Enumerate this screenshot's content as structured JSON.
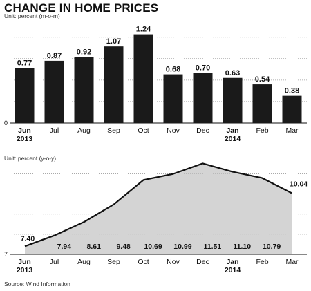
{
  "title": "CHANGE IN HOME PRICES",
  "source": "Source: Wind Information",
  "chart_data": [
    {
      "type": "bar",
      "unit": "Unit: percent (m-o-m)",
      "categories": [
        "Jun",
        "Jul",
        "Aug",
        "Sep",
        "Oct",
        "Nov",
        "Dec",
        "Jan",
        "Feb",
        "Mar"
      ],
      "year_labels": [
        "2013",
        "",
        "",
        "",
        "",
        "",
        "",
        "2014",
        "",
        ""
      ],
      "bold_categories": [
        0,
        7
      ],
      "values": [
        0.77,
        0.87,
        0.92,
        1.07,
        1.24,
        0.68,
        0.7,
        0.63,
        0.54,
        0.38
      ],
      "value_labels": [
        "0.77",
        "0.87",
        "0.92",
        "1.07",
        "1.24",
        "0.68",
        "0.70",
        "0.63",
        "0.54",
        "0.38"
      ],
      "ylim": [
        0,
        1.4
      ],
      "axis_min_label": "0",
      "grid": "dotted",
      "bar_color": "#1a1a1a"
    },
    {
      "type": "area",
      "unit": "Unit: percent (y-o-y)",
      "categories": [
        "Jun",
        "Jul",
        "Aug",
        "Sep",
        "Oct",
        "Nov",
        "Dec",
        "Jan",
        "Feb",
        "Mar"
      ],
      "year_labels": [
        "2013",
        "",
        "",
        "",
        "",
        "",
        "",
        "2014",
        "",
        ""
      ],
      "bold_categories": [
        0,
        7
      ],
      "values": [
        7.4,
        7.94,
        8.61,
        9.48,
        10.69,
        10.99,
        11.51,
        11.1,
        10.79,
        10.04
      ],
      "value_labels": [
        "7.40",
        "7.94",
        "8.61",
        "9.48",
        "10.69",
        "10.99",
        "11.51",
        "11.10",
        "10.79",
        "10.04"
      ],
      "ylim": [
        7,
        11.8
      ],
      "axis_min_label": "7",
      "grid": "dotted",
      "fill_color": "#d4d4d4",
      "line_color": "#111111"
    }
  ]
}
